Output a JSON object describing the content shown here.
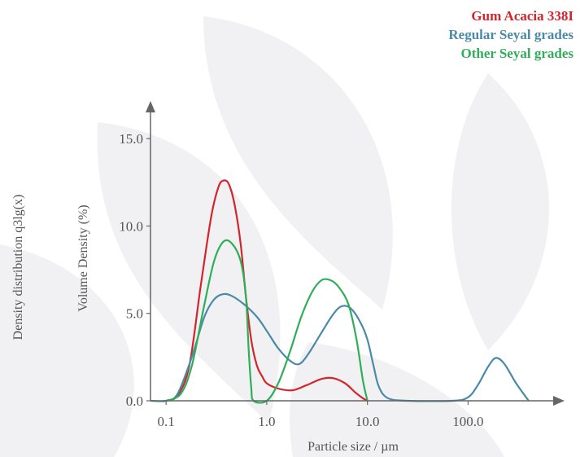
{
  "colors": {
    "background_leaf": "#f1f1f3",
    "axis": "#666666",
    "gum_acacia": "#d4242b",
    "regular_seyal": "#4a8aa8",
    "other_seyal": "#2fae5a"
  },
  "chart_data": {
    "type": "line",
    "title": "",
    "outer_ylabel": "Density distribution q3lg(x)",
    "ylabel": "Volume Density (%)",
    "xlabel": "Particle size / µm",
    "x_scale": "log",
    "xlim": [
      0.07,
      700
    ],
    "ylim": [
      0,
      16.5
    ],
    "x_ticks": [
      {
        "value": 0.1,
        "label": "0.1"
      },
      {
        "value": 1,
        "label": "1.0"
      },
      {
        "value": 10,
        "label": "10.0"
      },
      {
        "value": 100,
        "label": "100.0"
      }
    ],
    "y_ticks": [
      {
        "value": 0,
        "label": "0.0"
      },
      {
        "value": 5,
        "label": "5.0"
      },
      {
        "value": 10,
        "label": "10.0"
      },
      {
        "value": 15,
        "label": "15.0"
      }
    ],
    "grid": false,
    "legend_position": "top-right",
    "series": [
      {
        "name": "Gum Acacia 338I",
        "color": "#d4242b",
        "points": [
          [
            0.1,
            0
          ],
          [
            0.13,
            0.3
          ],
          [
            0.17,
            2
          ],
          [
            0.22,
            6.5
          ],
          [
            0.28,
            10.5
          ],
          [
            0.33,
            12.2
          ],
          [
            0.37,
            12.6
          ],
          [
            0.42,
            12.4
          ],
          [
            0.48,
            11.2
          ],
          [
            0.55,
            9
          ],
          [
            0.62,
            6
          ],
          [
            0.7,
            3.5
          ],
          [
            0.8,
            2
          ],
          [
            0.9,
            1.4
          ],
          [
            1,
            1
          ],
          [
            1.3,
            0.7
          ],
          [
            1.8,
            0.6
          ],
          [
            2.5,
            0.9
          ],
          [
            3.5,
            1.25
          ],
          [
            4.5,
            1.3
          ],
          [
            6,
            1
          ],
          [
            7.5,
            0.5
          ],
          [
            9,
            0.15
          ],
          [
            10,
            0
          ]
        ]
      },
      {
        "name": "Regular Seyal grades",
        "color": "#4a8aa8",
        "points": [
          [
            0.07,
            0
          ],
          [
            0.1,
            0
          ],
          [
            0.13,
            0.4
          ],
          [
            0.18,
            2.5
          ],
          [
            0.24,
            4.8
          ],
          [
            0.3,
            5.8
          ],
          [
            0.37,
            6.1
          ],
          [
            0.45,
            6
          ],
          [
            0.6,
            5.5
          ],
          [
            0.8,
            4.8
          ],
          [
            1,
            4
          ],
          [
            1.3,
            3
          ],
          [
            1.7,
            2.3
          ],
          [
            2.1,
            2.1
          ],
          [
            2.6,
            2.7
          ],
          [
            3.5,
            3.9
          ],
          [
            4.5,
            4.9
          ],
          [
            5.5,
            5.4
          ],
          [
            6.8,
            5.3
          ],
          [
            8.5,
            4.5
          ],
          [
            10,
            3.5
          ],
          [
            11.5,
            2
          ],
          [
            13,
            0.8
          ],
          [
            16,
            0.15
          ],
          [
            25,
            0
          ],
          [
            70,
            0
          ],
          [
            100,
            0.2
          ],
          [
            125,
            0.9
          ],
          [
            160,
            2
          ],
          [
            190,
            2.45
          ],
          [
            230,
            2.1
          ],
          [
            300,
            1
          ],
          [
            400,
            0
          ]
        ]
      },
      {
        "name": "Other Seyal grades",
        "color": "#2fae5a",
        "points": [
          [
            0.1,
            0
          ],
          [
            0.14,
            0.4
          ],
          [
            0.18,
            2
          ],
          [
            0.24,
            5.5
          ],
          [
            0.3,
            8
          ],
          [
            0.37,
            9.1
          ],
          [
            0.45,
            9
          ],
          [
            0.55,
            8
          ],
          [
            0.62,
            6
          ],
          [
            0.66,
            3
          ],
          [
            0.7,
            0.8
          ],
          [
            0.74,
            0
          ],
          [
            1,
            0
          ],
          [
            1.3,
            1
          ],
          [
            1.7,
            2.8
          ],
          [
            2.2,
            4.8
          ],
          [
            2.8,
            6.2
          ],
          [
            3.5,
            6.9
          ],
          [
            4.3,
            6.9
          ],
          [
            5.2,
            6.5
          ],
          [
            6.5,
            5.5
          ],
          [
            7.8,
            3.5
          ],
          [
            9,
            1.2
          ],
          [
            10,
            0
          ]
        ]
      }
    ]
  }
}
